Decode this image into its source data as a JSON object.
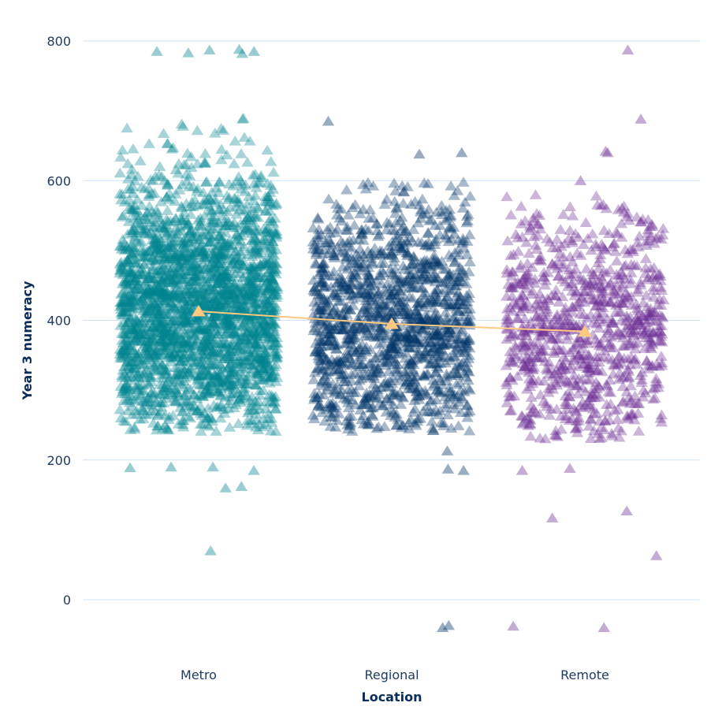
{
  "chart_data": {
    "type": "scatter",
    "subtype": "jittered strip plot with mean line",
    "xlabel": "Location",
    "ylabel": "Year 3 numeracy",
    "categories": [
      "Metro",
      "Regional",
      "Remote"
    ],
    "ylim": [
      -60,
      820
    ],
    "yticks": [
      0,
      200,
      400,
      600,
      800
    ],
    "grid": "horizontal",
    "legend": "none",
    "marker": "triangle",
    "colors": {
      "Metro": "#00838F",
      "Regional": "#003366",
      "Remote": "#6A2C91",
      "mean": "#FFC880",
      "grid": "#CFE3F5"
    },
    "means": [
      {
        "category": "Metro",
        "value": 413
      },
      {
        "category": "Regional",
        "value": 395
      },
      {
        "category": "Remote",
        "value": 384
      }
    ],
    "bulk_range": {
      "Metro": [
        240,
        700
      ],
      "Regional": [
        240,
        600
      ],
      "Remote": [
        230,
        580
      ]
    },
    "outliers": {
      "Metro": [
        787,
        785,
        785,
        788,
        783,
        782,
        70,
        160,
        162,
        185,
        190,
        190,
        189
      ],
      "Regional": [
        -40,
        -37,
        685,
        640,
        638,
        185,
        187,
        213
      ],
      "Remote": [
        787,
        688,
        640,
        642,
        600,
        117,
        127,
        63,
        -38,
        -40,
        185,
        188
      ]
    }
  }
}
